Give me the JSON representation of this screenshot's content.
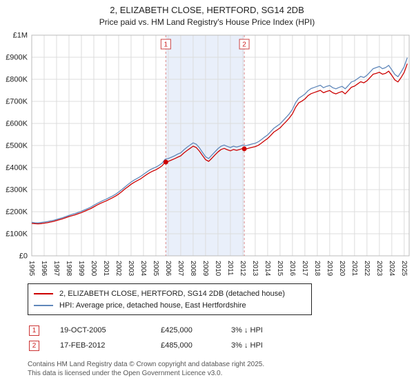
{
  "title": "2, ELIZABETH CLOSE, HERTFORD, SG14 2DB",
  "subtitle": "Price paid vs. HM Land Registry's House Price Index (HPI)",
  "chart_data": {
    "type": "line",
    "x_start": 1995,
    "x_step": 0.25,
    "x_range": [
      1995,
      2025.4
    ],
    "xticks": [
      1995,
      1996,
      1997,
      1998,
      1999,
      2000,
      2001,
      2002,
      2003,
      2004,
      2005,
      2006,
      2007,
      2008,
      2009,
      2010,
      2011,
      2012,
      2013,
      2014,
      2015,
      2016,
      2017,
      2018,
      2019,
      2020,
      2021,
      2022,
      2023,
      2024,
      2025
    ],
    "ylim": [
      0,
      1000000
    ],
    "ytick_step": 100000,
    "ytick_labels": [
      "£0",
      "£100K",
      "£200K",
      "£300K",
      "£400K",
      "£500K",
      "£600K",
      "£700K",
      "£800K",
      "£900K",
      "£1M"
    ],
    "y_multiplier": 1000,
    "grid": true,
    "legend_position": "below",
    "colors": {
      "shade": "#e9effa",
      "dashed": "#dd8888",
      "dot": "#cc0000",
      "box_border": "#cc4444",
      "box_text": "#cc2222",
      "grid": "#dcdcdc",
      "frame": "#bbbbbb"
    },
    "series": [
      {
        "name": "2, ELIZABETH CLOSE, HERTFORD, SG14 2DB (detached house)",
        "color": "#cc0000",
        "values": [
          147,
          146,
          145,
          146,
          148,
          150,
          153,
          156,
          160,
          164,
          168,
          173,
          178,
          182,
          186,
          191,
          196,
          202,
          208,
          214,
          222,
          230,
          237,
          243,
          249,
          256,
          263,
          271,
          280,
          291,
          303,
          313,
          324,
          333,
          341,
          348,
          358,
          368,
          377,
          384,
          390,
          398,
          408,
          425,
          428,
          434,
          440,
          447,
          453,
          466,
          477,
          487,
          497,
          491,
          475,
          455,
          436,
          428,
          442,
          457,
          471,
          482,
          487,
          481,
          476,
          482,
          478,
          482,
          487,
          484,
          488,
          492,
          495,
          501,
          511,
          522,
          532,
          546,
          561,
          570,
          580,
          595,
          609,
          625,
          644,
          673,
          693,
          701,
          711,
          726,
          735,
          740,
          745,
          750,
          739,
          745,
          749,
          739,
          734,
          740,
          745,
          734,
          749,
          764,
          769,
          779,
          789,
          784,
          793,
          808,
          823,
          827,
          832,
          823,
          827,
          837,
          818,
          797,
          788,
          808,
          832,
          871
        ]
      },
      {
        "name": "HPI: Average price, detached house, East Hertfordshire",
        "color": "#5f87ba",
        "values": [
          152,
          150,
          149,
          151,
          153,
          155,
          158,
          161,
          165,
          169,
          173,
          178,
          183,
          188,
          192,
          197,
          202,
          208,
          214,
          221,
          229,
          237,
          244,
          251,
          257,
          264,
          271,
          279,
          289,
          300,
          312,
          323,
          334,
          343,
          351,
          359,
          369,
          379,
          389,
          396,
          402,
          410,
          420,
          438,
          441,
          447,
          453,
          461,
          467,
          480,
          492,
          502,
          512,
          506,
          490,
          469,
          449,
          441,
          456,
          471,
          486,
          497,
          502,
          496,
          491,
          497,
          493,
          497,
          502,
          499,
          503,
          507,
          510,
          517,
          527,
          538,
          548,
          563,
          578,
          588,
          598,
          613,
          628,
          644,
          664,
          694,
          714,
          723,
          733,
          748,
          758,
          763,
          768,
          773,
          762,
          768,
          772,
          762,
          757,
          763,
          768,
          757,
          772,
          788,
          793,
          803,
          813,
          808,
          818,
          833,
          848,
          853,
          858,
          848,
          853,
          863,
          843,
          822,
          812,
          833,
          858,
          898
        ]
      }
    ],
    "shaded_region": [
      2005.8,
      2012.12
    ],
    "sales": [
      {
        "label": "1",
        "x": 2005.8,
        "price": 425000
      },
      {
        "label": "2",
        "x": 2012.12,
        "price": 485000
      }
    ]
  },
  "transactions": [
    {
      "num": "1",
      "date": "19-OCT-2005",
      "price": "£425,000",
      "hpi": "3% ↓ HPI"
    },
    {
      "num": "2",
      "date": "17-FEB-2012",
      "price": "£485,000",
      "hpi": "3% ↓ HPI"
    }
  ],
  "footer": {
    "line1": "Contains HM Land Registry data © Crown copyright and database right 2025.",
    "line2": "This data is licensed under the Open Government Licence v3.0."
  }
}
